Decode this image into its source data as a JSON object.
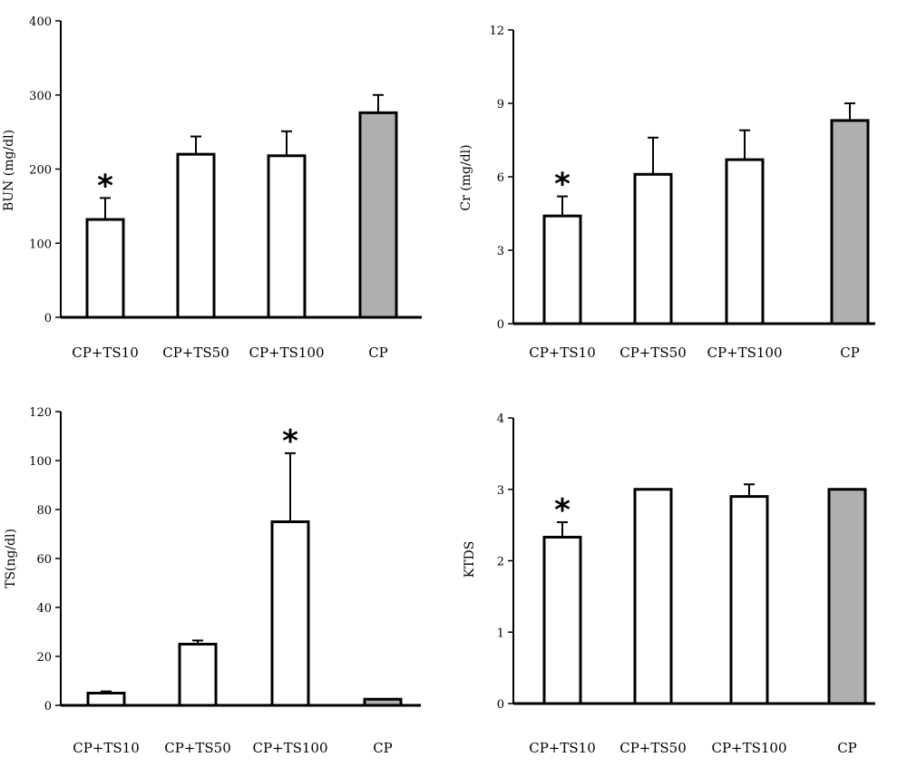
{
  "chart_data": [
    {
      "type": "bar",
      "categories": [
        "CP+TS10",
        "CP+TS50",
        "CP+TS100",
        "CP"
      ],
      "values": [
        132,
        220,
        218,
        276
      ],
      "errors": [
        29,
        24,
        33,
        24
      ],
      "significant": [
        true,
        false,
        false,
        false
      ],
      "significance_mark": "*",
      "title": "",
      "xlabel": "",
      "ylabel": "BUN (mg/dl)",
      "ylim": [
        0,
        400
      ],
      "yticks": [
        "0",
        "100",
        "200",
        "300",
        "400"
      ],
      "grid": false,
      "legend": "none",
      "bar_colors": [
        "#ffffff",
        "#ffffff",
        "#ffffff",
        "#b0b0b0"
      ]
    },
    {
      "type": "bar",
      "categories": [
        "CP+TS10",
        "CP+TS50",
        "CP+TS100",
        "CP"
      ],
      "values": [
        4.4,
        6.1,
        6.7,
        8.3
      ],
      "errors": [
        0.8,
        1.5,
        1.2,
        0.7
      ],
      "significant": [
        true,
        false,
        false,
        false
      ],
      "significance_mark": "*",
      "title": "",
      "xlabel": "",
      "ylabel": "Cr (mg/dl)",
      "ylim": [
        0,
        12
      ],
      "yticks": [
        "0",
        "3",
        "6",
        "9",
        "12"
      ],
      "grid": false,
      "legend": "none",
      "bar_colors": [
        "#ffffff",
        "#ffffff",
        "#ffffff",
        "#b0b0b0"
      ]
    },
    {
      "type": "bar",
      "categories": [
        "CP+TS10",
        "CP+TS50",
        "CP+TS100",
        "CP"
      ],
      "values": [
        5,
        25,
        75,
        2.5
      ],
      "errors": [
        0.7,
        1.5,
        28,
        0
      ],
      "significant": [
        false,
        false,
        true,
        false
      ],
      "significance_mark": "*",
      "title": "",
      "xlabel": "",
      "ylabel": "TS(ng/dl)",
      "ylim": [
        0,
        120
      ],
      "yticks": [
        "0",
        "20",
        "40",
        "60",
        "80",
        "100",
        "120"
      ],
      "grid": false,
      "legend": "none",
      "bar_colors": [
        "#ffffff",
        "#ffffff",
        "#ffffff",
        "#b0b0b0"
      ]
    },
    {
      "type": "bar",
      "categories": [
        "CP+TS10",
        "CP+TS50",
        "CP+TS100",
        "CP"
      ],
      "values": [
        2.33,
        3.0,
        2.9,
        3.0
      ],
      "errors": [
        0.21,
        0,
        0.17,
        0
      ],
      "significant": [
        true,
        false,
        false,
        false
      ],
      "significance_mark": "*",
      "title": "",
      "xlabel": "",
      "ylabel": "KTDS",
      "ylim": [
        0,
        4
      ],
      "yticks": [
        "0",
        "1",
        "2",
        "3",
        "4"
      ],
      "grid": false,
      "legend": "none",
      "bar_colors": [
        "#ffffff",
        "#ffffff",
        "#ffffff",
        "#b0b0b0"
      ]
    }
  ]
}
